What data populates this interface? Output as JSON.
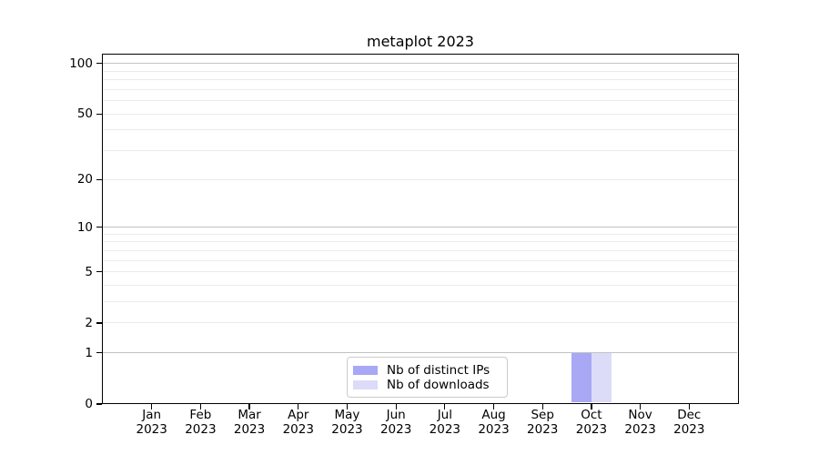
{
  "figure": {
    "title": "metaplot 2023"
  },
  "chart_data": {
    "type": "bar",
    "title": "metaplot 2023",
    "xlabel": "",
    "ylabel": "",
    "categories": [
      "Jan 2023",
      "Feb 2023",
      "Mar 2023",
      "Apr 2023",
      "May 2023",
      "Jun 2023",
      "Jul 2023",
      "Aug 2023",
      "Sep 2023",
      "Oct 2023",
      "Nov 2023",
      "Dec 2023"
    ],
    "series": [
      {
        "name": "Nb of distinct IPs",
        "color": "#a8a8f5",
        "values": [
          0,
          0,
          0,
          0,
          0,
          0,
          0,
          0,
          0,
          1,
          0,
          0
        ]
      },
      {
        "name": "Nb of downloads",
        "color": "#dcdcf8",
        "values": [
          0,
          0,
          0,
          0,
          0,
          0,
          0,
          0,
          0,
          1,
          0,
          0
        ]
      }
    ],
    "yscale": "log1p",
    "ylim": [
      0,
      113
    ],
    "y_tick_values": [
      0,
      1,
      2,
      5,
      10,
      20,
      50,
      100
    ],
    "y_major_gridlines": [
      1,
      10,
      100
    ],
    "y_minor_gridlines": [
      2,
      3,
      4,
      5,
      6,
      7,
      8,
      9,
      20,
      30,
      40,
      50,
      60,
      70,
      80,
      90
    ],
    "grid_on": true,
    "legend_position": "lower center",
    "colors": {
      "grid_major": "#c2c2c2",
      "grid_minor": "#ebebeb",
      "spine": "#000000",
      "background": "#ffffff"
    }
  }
}
